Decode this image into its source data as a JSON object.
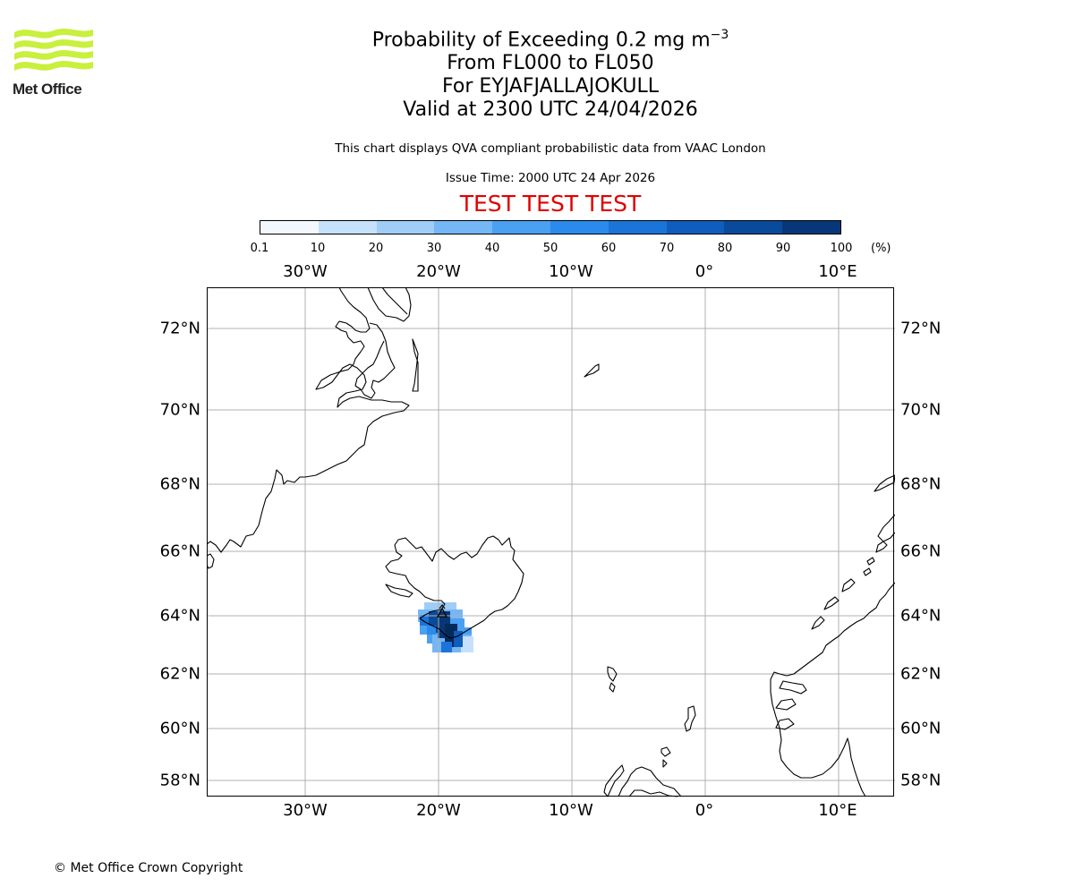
{
  "logo": {
    "text": "Met Office",
    "accent_color": "#c8f03c",
    "icon": "met-office-waves-logo"
  },
  "title": {
    "main_prefix": "Probability of Exceeding 0.2 mg m",
    "main_superscript": "−3",
    "levels": "From FL000 to FL050",
    "volcano": "For EYJAFJALLAJOKULL",
    "valid": "Valid at 2300 UTC 24/04/2026"
  },
  "disclaimer": "This chart displays QVA compliant probabilistic data from VAAC London",
  "issue_time": "Issue Time: 2000 UTC 24 Apr 2026",
  "test_banner": "TEST TEST TEST",
  "colorbar": {
    "ticks": [
      "0.1",
      "10",
      "20",
      "30",
      "40",
      "50",
      "60",
      "70",
      "80",
      "90",
      "100"
    ],
    "unit": "(%)",
    "colors": [
      "#f3f8fe",
      "#c6e1fb",
      "#a0cdf8",
      "#75b6f5",
      "#4aa0f1",
      "#2a8bec",
      "#1b74d8",
      "#0f5dbc",
      "#0a4a9a",
      "#073778",
      "#042a5c"
    ]
  },
  "map": {
    "lon_labels": [
      "30°W",
      "20°W",
      "10°W",
      "0°",
      "10°E"
    ],
    "lat_labels": [
      "72°N",
      "70°N",
      "68°N",
      "66°N",
      "64°N",
      "62°N",
      "60°N",
      "58°N"
    ],
    "extent": {
      "lon_min": -37.4,
      "lon_max": 14.1,
      "lat_min": 57.5,
      "lat_max": 73.0
    },
    "gridline_color": "#b0b0b0",
    "coastline_color": "#000000",
    "volcano": {
      "name": "EYJAFJALLAJOKULL",
      "lat": 63.63,
      "lon": -19.62
    }
  },
  "copyright": "© Met Office Crown Copyright"
}
